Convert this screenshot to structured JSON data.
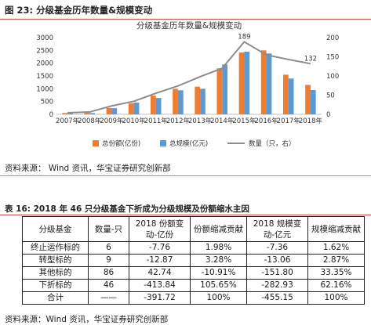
{
  "figure": {
    "label": "图 23: 分级基金历年数量&规模变动",
    "source": "资料来源： Wind 资讯，华宝证券研究创新部"
  },
  "chart_data": {
    "type": "bar",
    "title": "分级基金历年数量&规模变动",
    "categories": [
      "2007年",
      "2008年",
      "2009年",
      "2010年",
      "2011年",
      "2012年",
      "2013年",
      "2014年",
      "2015年",
      "2016年",
      "2017年",
      "2018年"
    ],
    "series": [
      {
        "name": "总份额(亿份)",
        "type": "bar",
        "axis": "left",
        "color": "#ed7d31",
        "values": [
          50,
          60,
          250,
          430,
          730,
          1000,
          1080,
          1800,
          2420,
          2500,
          1550,
          1150
        ]
      },
      {
        "name": "总规模(亿元)",
        "type": "bar",
        "axis": "left",
        "color": "#5b9bd5",
        "values": [
          40,
          50,
          240,
          460,
          640,
          940,
          1000,
          1950,
          2450,
          2380,
          1400,
          950
        ]
      },
      {
        "name": "数量（只，右）",
        "type": "line",
        "axis": "right",
        "color": "#8c8c8c",
        "values": [
          4,
          6,
          22,
          34,
          55,
          74,
          98,
          120,
          189,
          155,
          143,
          132
        ]
      }
    ],
    "ylim_left": [
      0,
      3000
    ],
    "yticks_left": [
      0,
      500,
      1000,
      1500,
      2000,
      2500,
      3000
    ],
    "ylim_right": [
      0,
      200
    ],
    "yticks_right": [
      0,
      50,
      100,
      150,
      200
    ],
    "annotations": [
      {
        "category": "2015年",
        "series": "数量（只，右）",
        "text": "189"
      },
      {
        "category": "2018年",
        "series": "数量（只，右）",
        "text": "132"
      }
    ],
    "grid": false,
    "legend": "bottom"
  },
  "table": {
    "label": "表 16: 2018 年 46 只分级基金下折成为分级规模及份额缩水主因",
    "headers": [
      "分级基金",
      "数量-只",
      "2018 份额变动-亿份",
      "份额缩减贡献",
      "2018 规模变动-亿元",
      "规模缩减贡献"
    ],
    "rows": [
      [
        "终止运作标的",
        "6",
        "-7.76",
        "1.98%",
        "-7.36",
        "1.62%"
      ],
      [
        "转型标的",
        "9",
        "-12.87",
        "3.28%",
        "-13.06",
        "2.87%"
      ],
      [
        "其他标的",
        "86",
        "42.74",
        "-10.91%",
        "-151.80",
        "33.35%"
      ],
      [
        "下折标的",
        "46",
        "-413.84",
        "105.65%",
        "-282.93",
        "62.16%"
      ],
      [
        "合计",
        "——",
        "-391.72",
        "100%",
        "-455.15",
        "100%"
      ]
    ],
    "source": "资料来源：Wind 资讯，华宝证券研究创新部"
  }
}
